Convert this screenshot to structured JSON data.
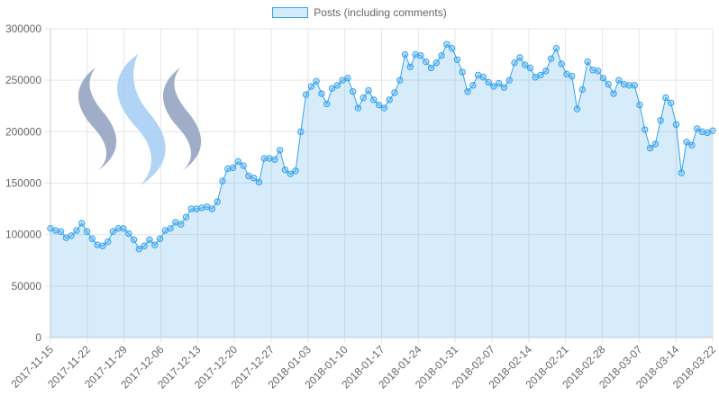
{
  "legend": {
    "label": "Posts (including comments)"
  },
  "colors": {
    "line": "#36a2eb",
    "fill": "rgba(54,162,235,0.2)",
    "grid": "#e6e6e6",
    "text": "#666666"
  },
  "logo": {
    "name": "steem-logo"
  },
  "chart_data": {
    "type": "area",
    "title": "",
    "xlabel": "",
    "ylabel": "",
    "grid": true,
    "legend_position": "top",
    "ylim": [
      0,
      300000
    ],
    "yticks": [
      0,
      50000,
      100000,
      150000,
      200000,
      250000,
      300000
    ],
    "x_tick_labels": [
      "2017-11-15",
      "2017-11-22",
      "2017-11-29",
      "2017-12-06",
      "2017-12-13",
      "2017-12-20",
      "2017-12-27",
      "2018-01-03",
      "2018-01-10",
      "2018-01-17",
      "2018-01-24",
      "2018-01-31",
      "2018-02-07",
      "2018-02-14",
      "2018-02-21",
      "2018-02-28",
      "2018-03-07",
      "2018-03-14",
      "2018-03-22"
    ],
    "series": [
      {
        "name": "Posts (including comments)",
        "values": [
          106000,
          104000,
          103000,
          97000,
          99000,
          104000,
          111000,
          103000,
          96000,
          90000,
          89000,
          93000,
          103000,
          106000,
          106000,
          101000,
          95000,
          86000,
          89000,
          95000,
          90000,
          96000,
          104000,
          106000,
          112000,
          110000,
          117000,
          125000,
          125000,
          126000,
          127000,
          125000,
          132000,
          152000,
          164000,
          165000,
          171000,
          167000,
          157000,
          155000,
          151000,
          174000,
          174000,
          173000,
          182000,
          163000,
          159000,
          162000,
          200000,
          236000,
          244000,
          249000,
          237000,
          227000,
          242000,
          245000,
          250000,
          252000,
          239000,
          223000,
          233000,
          240000,
          231000,
          226000,
          223000,
          231000,
          238000,
          250000,
          275000,
          263000,
          275000,
          274000,
          268000,
          262000,
          267000,
          274000,
          285000,
          281000,
          270000,
          258000,
          239000,
          245000,
          255000,
          253000,
          248000,
          244000,
          247000,
          243000,
          250000,
          267000,
          272000,
          265000,
          262000,
          253000,
          255000,
          259000,
          271000,
          281000,
          266000,
          256000,
          254000,
          222000,
          241000,
          268000,
          260000,
          259000,
          252000,
          246000,
          237000,
          250000,
          246000,
          245000,
          245000,
          226000,
          202000,
          184000,
          188000,
          211000,
          233000,
          228000,
          207000,
          160000,
          190000,
          187000,
          203000,
          200000,
          199000,
          201000
        ]
      }
    ]
  }
}
